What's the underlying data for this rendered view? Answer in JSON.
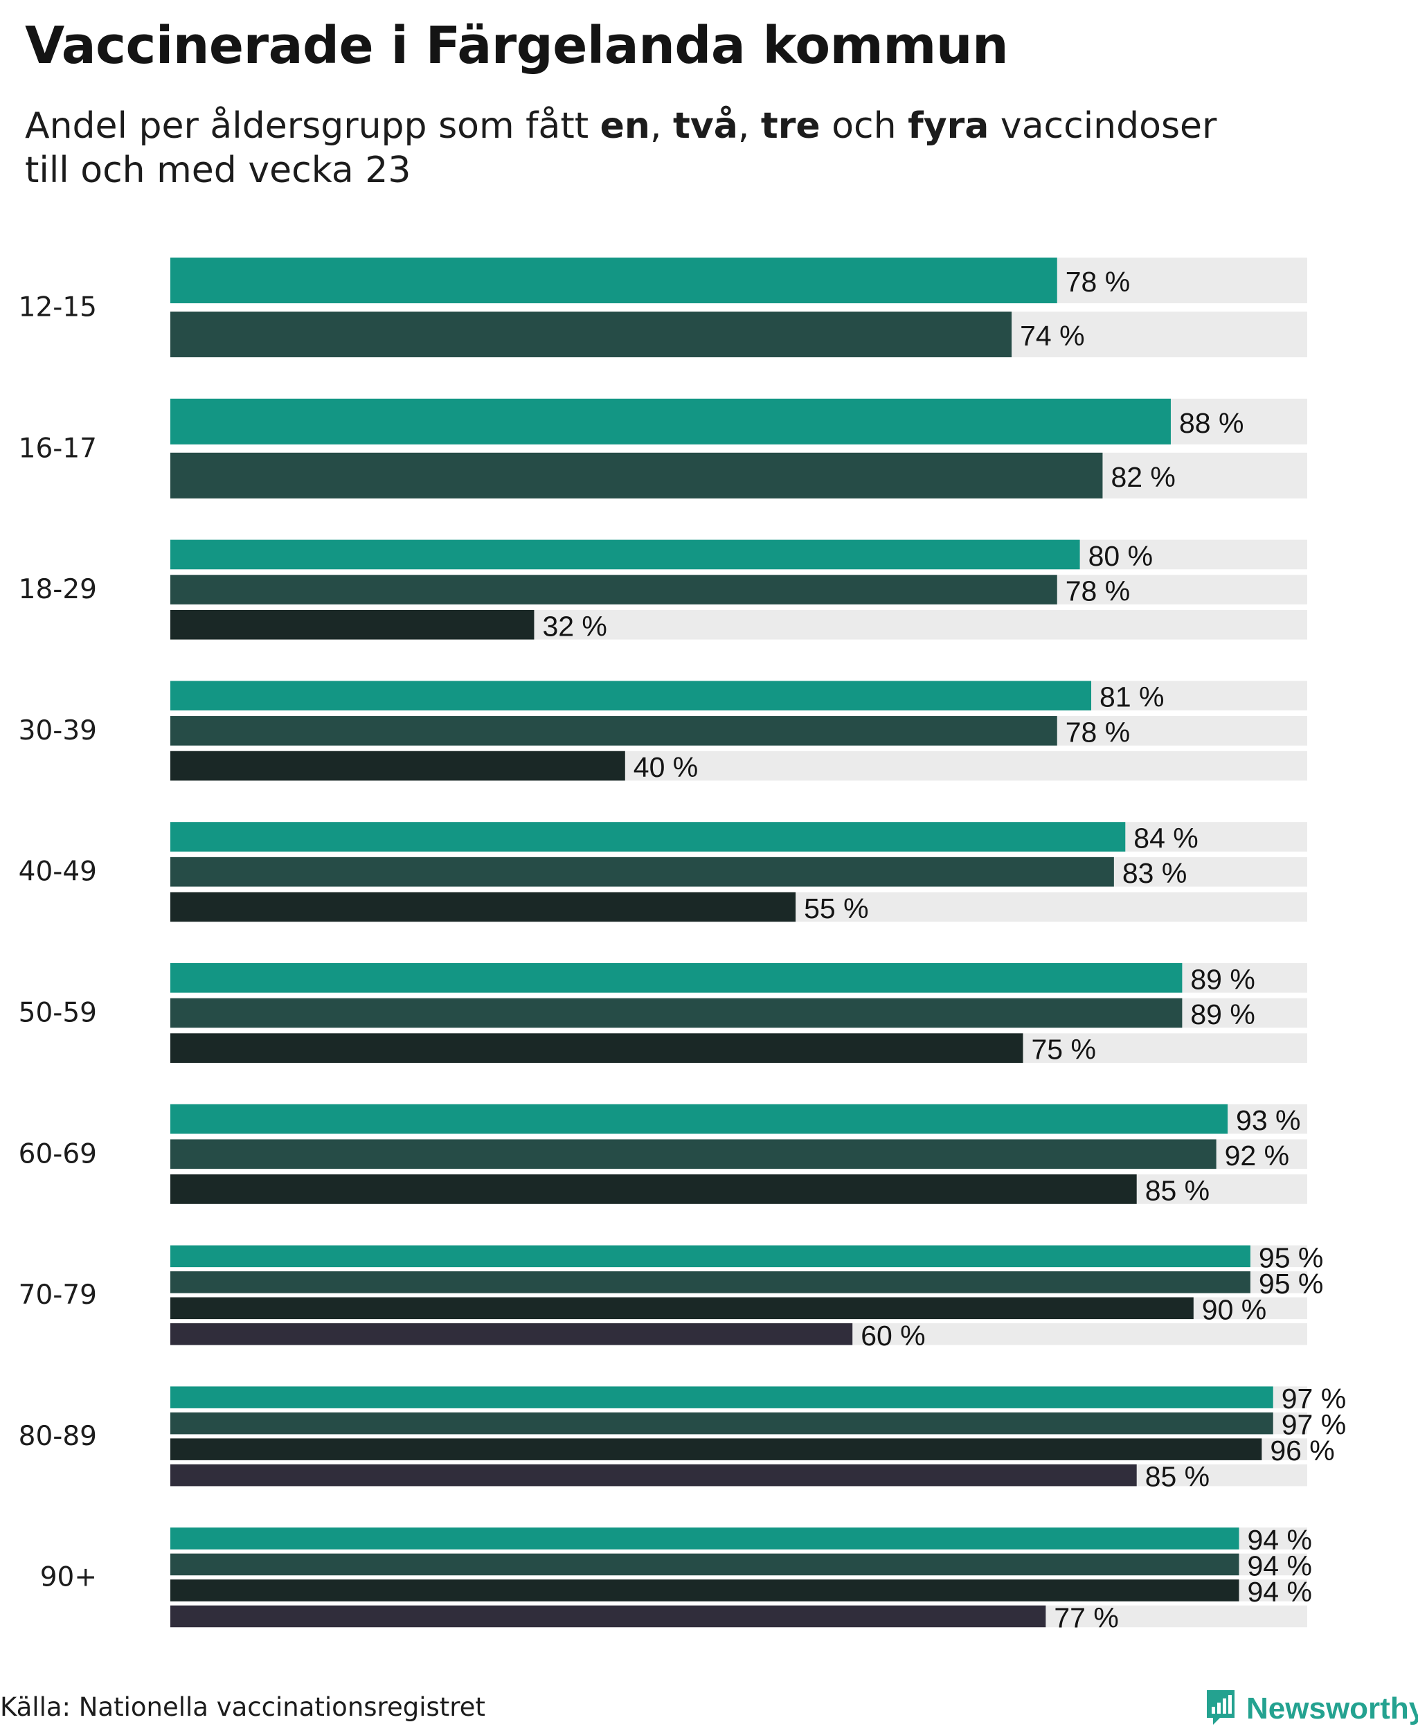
{
  "title": "Vaccinerade i Färgelanda kommun",
  "subtitle": {
    "pre": "Andel per åldersgrupp som fått ",
    "w1": "en",
    "sep1": ", ",
    "w2": "två",
    "sep2": ", ",
    "w3": "tre",
    "mid": " och ",
    "w4": "fyra",
    "post": " vaccindoser",
    "line2": "till och med vecka 23"
  },
  "source": "Källa: Nationella vaccinationsregistret",
  "logo": {
    "text": "Newsworthy",
    "icon": "newsworthy-logo-icon"
  },
  "colors": {
    "dose1": "#139684",
    "dose2": "#264c47",
    "dose3": "#1a2826",
    "dose4": "#302d3b",
    "track": "#ebebeb",
    "logo": "#24a290"
  },
  "chart_data": {
    "type": "bar",
    "orientation": "horizontal",
    "xlim": [
      0,
      100
    ],
    "unit": "%",
    "series": [
      {
        "key": "dose1",
        "values": [
          78,
          88,
          80,
          81,
          84,
          89,
          93,
          95,
          97,
          94
        ]
      },
      {
        "key": "dose2",
        "values": [
          74,
          82,
          78,
          78,
          83,
          89,
          92,
          95,
          97,
          94
        ]
      },
      {
        "key": "dose3",
        "values": [
          null,
          null,
          32,
          40,
          55,
          75,
          85,
          90,
          96,
          94
        ]
      },
      {
        "key": "dose4",
        "values": [
          null,
          null,
          null,
          null,
          null,
          null,
          null,
          60,
          85,
          77
        ]
      }
    ],
    "categories": [
      "12-15",
      "16-17",
      "18-29",
      "30-39",
      "40-49",
      "50-59",
      "60-69",
      "70-79",
      "80-89",
      "90+"
    ]
  }
}
